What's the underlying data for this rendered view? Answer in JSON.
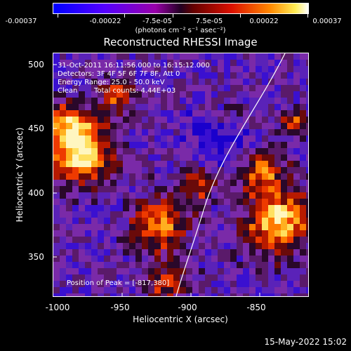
{
  "colorbar": {
    "tick_labels": [
      "-0.00037",
      "-0.00022",
      "-7.5e-05",
      "7.5e-05",
      "0.00022",
      "0.00037"
    ],
    "units_label": "(photons cm⁻² s⁻¹ asec⁻²)",
    "colors": [
      "#0000ff",
      "#4400ff",
      "#8800cc",
      "#330033",
      "#990000",
      "#ff2200",
      "#ff8800",
      "#ffee44",
      "#ffffff"
    ]
  },
  "title": "Reconstructed RHESSI Image",
  "annotations": {
    "time_range": "31-Oct-2011 16:11:56.000 to 16:15:12.000",
    "detectors": "Detectors: 3F 4F 5F 6F 7F 8F, Att 0",
    "energy": "Energy Range: 25.0 - 50.0 keV",
    "clean_label": "Clean",
    "total_counts": "Total counts: 4.44E+03",
    "peak": "Position of Peak = [-817,380]"
  },
  "axes": {
    "xlabel": "Heliocentric X (arcsec)",
    "ylabel": "Heliocentric Y (arcsec)",
    "xticks": [
      "-1000",
      "-950",
      "-900",
      "-850"
    ],
    "yticks": [
      "500",
      "450",
      "400",
      "350"
    ],
    "xlim": [
      -1000,
      -815
    ],
    "ylim": [
      316,
      508
    ]
  },
  "footer": "15-May-2022 15:02"
}
